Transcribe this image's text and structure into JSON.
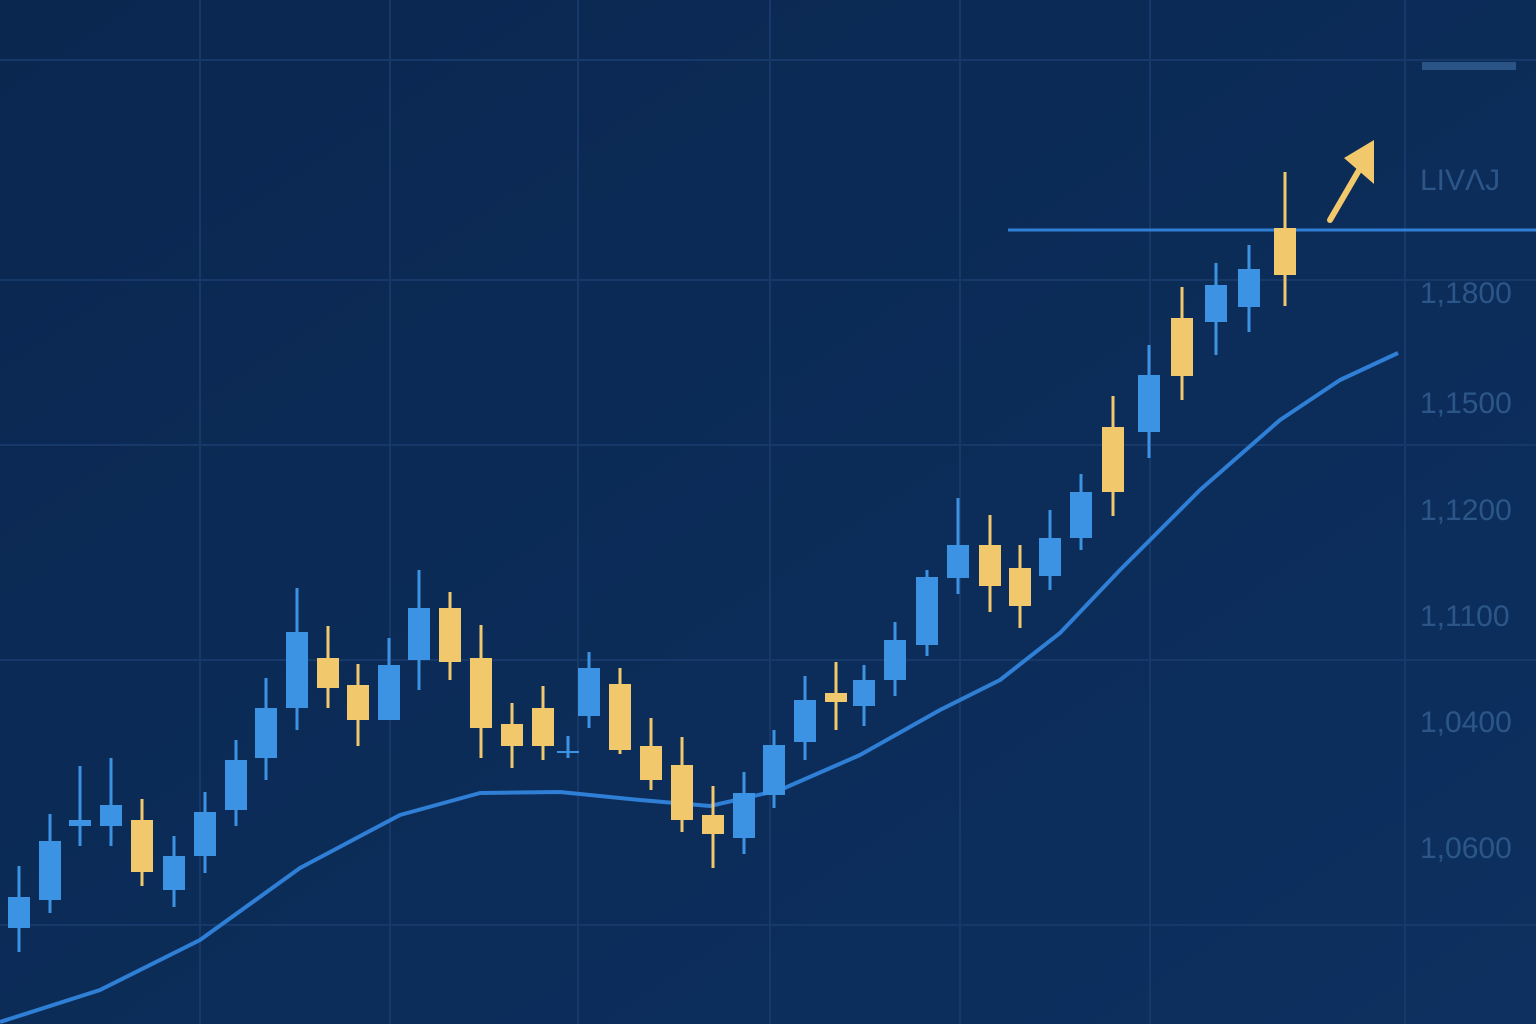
{
  "chart_data": {
    "type": "candlestick",
    "x": [
      19,
      50,
      80,
      111,
      142,
      174,
      205,
      236,
      266,
      297,
      328,
      358,
      389,
      419,
      450,
      481,
      512,
      543,
      568,
      589,
      620,
      651,
      682,
      713,
      744,
      774,
      805,
      836,
      864,
      895,
      927,
      958,
      990,
      1020,
      1050,
      1081,
      1113,
      1149,
      1182,
      1216,
      1249,
      1285
    ],
    "open": [
      96,
      124,
      198,
      198,
      204,
      134,
      168,
      214,
      266,
      316,
      366,
      339,
      304,
      364,
      416,
      366,
      300,
      316,
      271,
      308,
      340,
      278,
      259,
      209,
      186,
      229,
      282,
      331,
      318,
      344,
      379,
      446,
      479,
      456,
      448,
      486,
      597,
      592,
      706,
      702,
      717,
      796
    ],
    "high": [
      158,
      210,
      258,
      266,
      225,
      188,
      232,
      284,
      346,
      436,
      398,
      360,
      386,
      454,
      432,
      399,
      321,
      338,
      288,
      372,
      356,
      306,
      287,
      238,
      252,
      294,
      348,
      362,
      359,
      402,
      454,
      526,
      509,
      479,
      514,
      550,
      628,
      679,
      737,
      761,
      779,
      852
    ],
    "low": [
      72,
      111,
      178,
      178,
      138,
      117,
      151,
      198,
      244,
      294,
      316,
      278,
      304,
      334,
      344,
      266,
      256,
      264,
      266,
      296,
      270,
      234,
      192,
      156,
      170,
      216,
      264,
      294,
      298,
      328,
      368,
      430,
      412,
      396,
      434,
      474,
      508,
      566,
      624,
      669,
      692,
      718
    ],
    "close": [
      127,
      183,
      204,
      219,
      152,
      168,
      212,
      264,
      316,
      392,
      336,
      304,
      359,
      416,
      362,
      296,
      278,
      278,
      273,
      356,
      274,
      244,
      204,
      190,
      231,
      279,
      324,
      322,
      344,
      384,
      447,
      479,
      438,
      418,
      486,
      532,
      532,
      649,
      648,
      739,
      755,
      749
    ],
    "up_color": "#3d93e3",
    "down_color": "#f2c86c",
    "moving_average": {
      "color": "#2f7fd6",
      "x": [
        0,
        100,
        200,
        300,
        400,
        480,
        560,
        640,
        710,
        780,
        860,
        940,
        1000,
        1060,
        1120,
        1200,
        1280,
        1340,
        1398
      ],
      "values": [
        2,
        34,
        84,
        156,
        209,
        231,
        232,
        224,
        218,
        234,
        269,
        314,
        344,
        391,
        454,
        534,
        604,
        644,
        671
      ]
    },
    "reference_line": {
      "value": 794,
      "color": "#2f7fd6"
    },
    "xlim": [
      0,
      1536
    ],
    "ylim": [
      0,
      1024
    ],
    "badge": "LIVΛJ",
    "axis_labels": [
      "1,1800",
      "1,1500",
      "1,1200",
      "1,1100",
      "1,0400",
      "1,0600"
    ]
  }
}
